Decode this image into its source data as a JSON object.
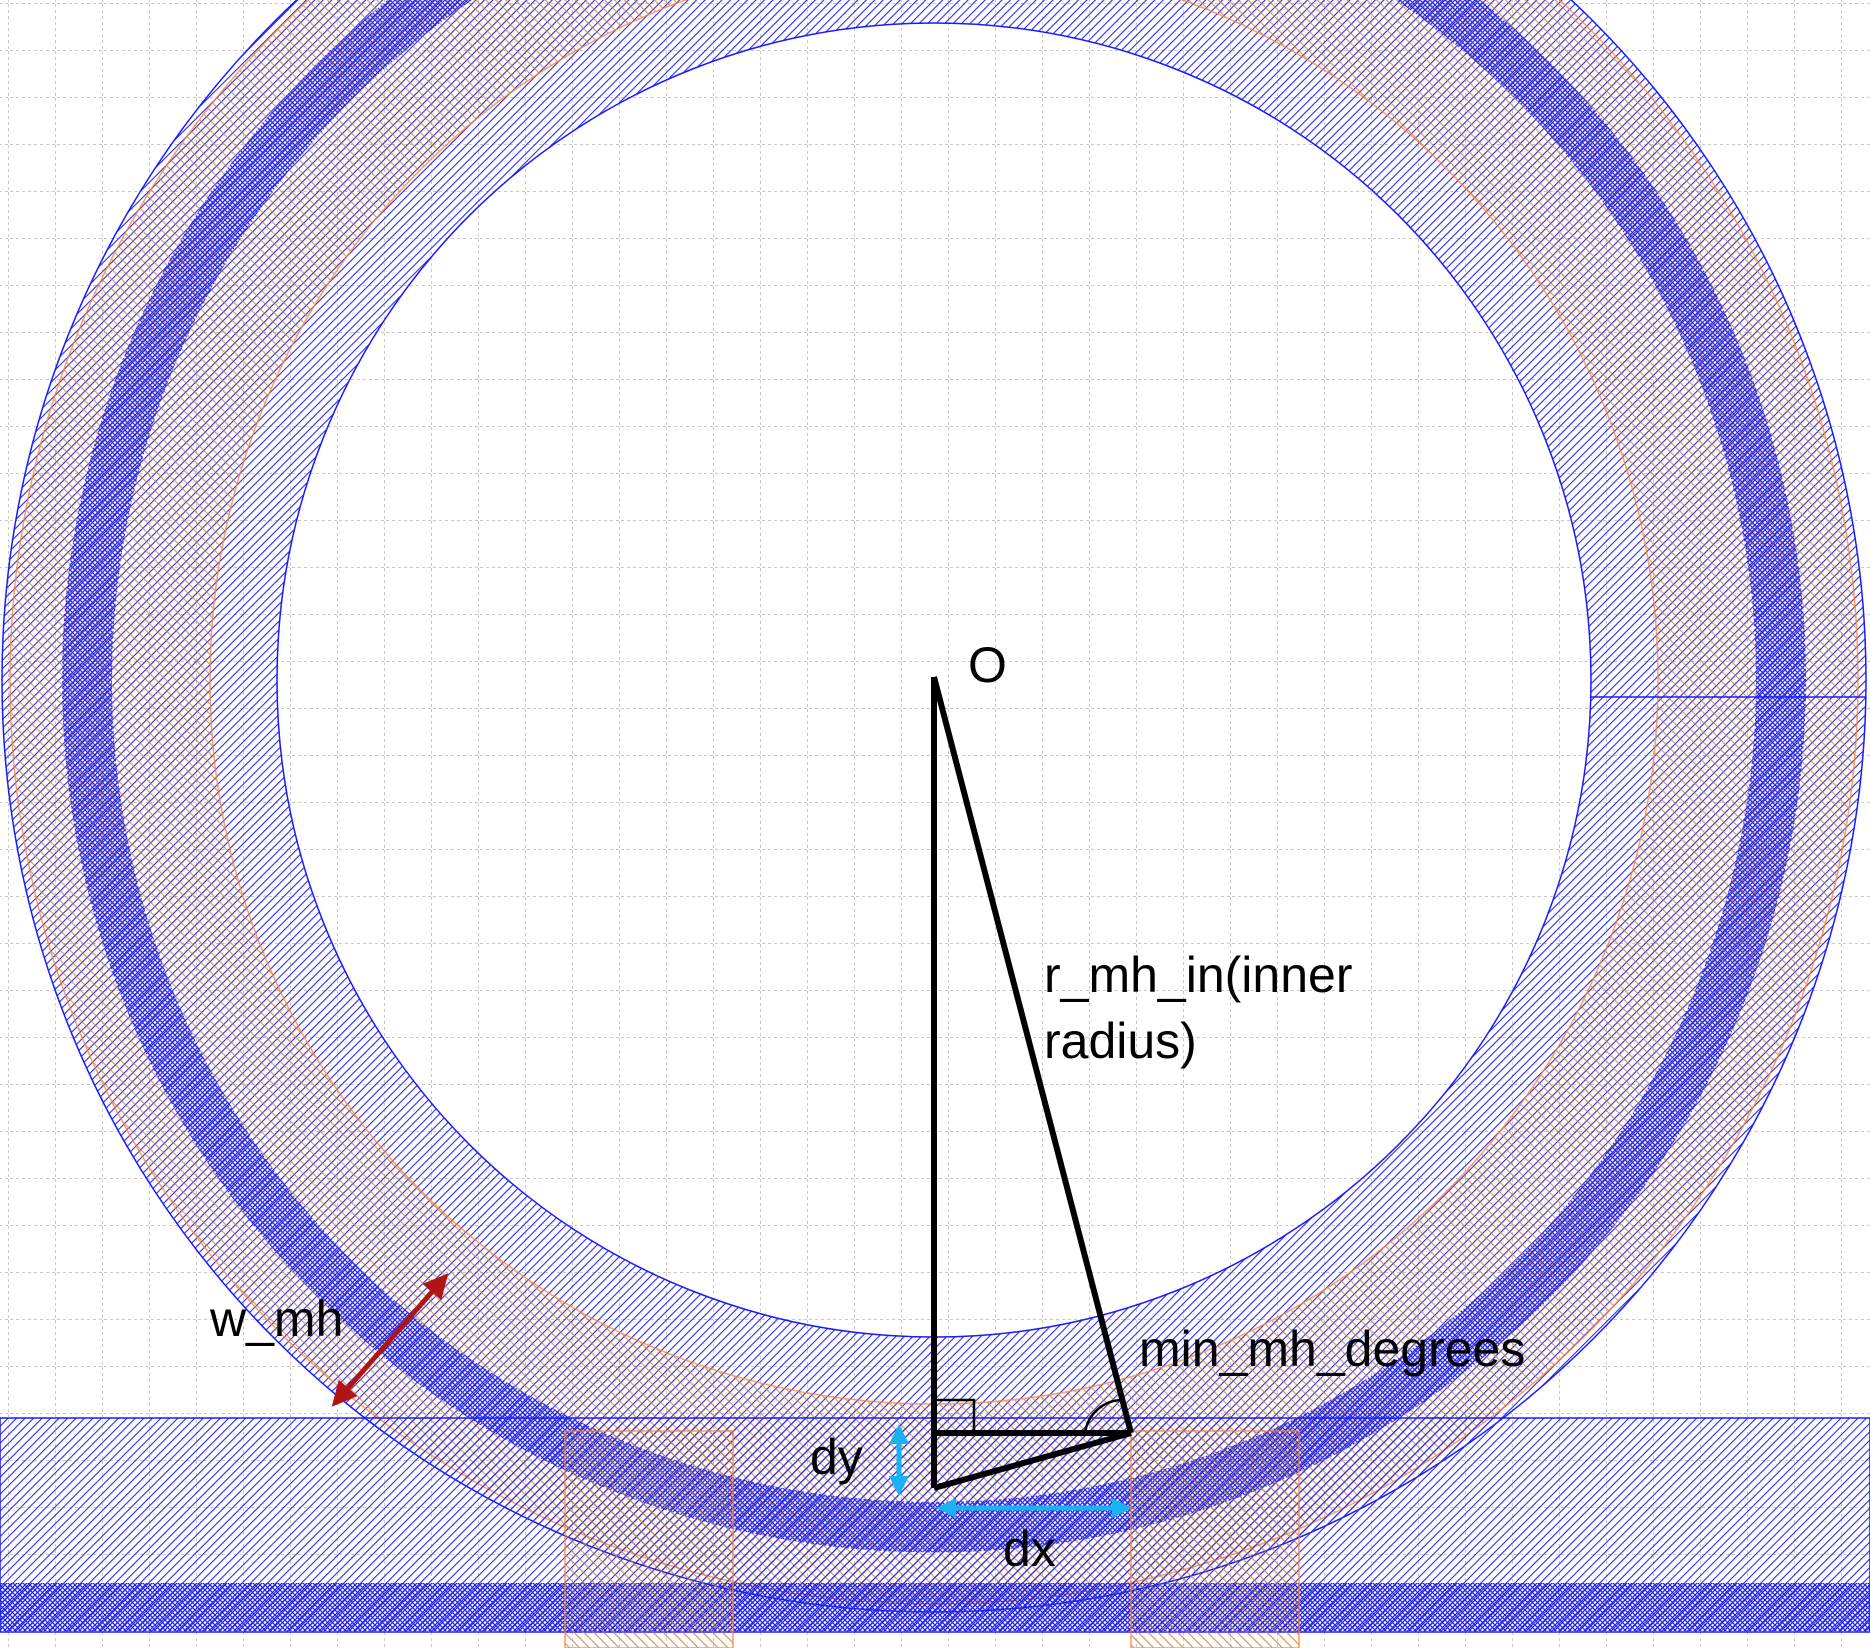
{
  "labels": {
    "origin": "O",
    "radius_line1": "r_mh_in(inner",
    "radius_line2": "radius)",
    "width": "w_mh",
    "angle": "min_mh_degrees",
    "dy": "dy",
    "dx": "dx"
  },
  "colors": {
    "background": "#ffffff",
    "grid": "#b0b0b0",
    "blue_hatch": "#2b2bf0",
    "blue_outline": "#1a1aff",
    "orange_hatch": "#c87a3c",
    "orange_outline": "#ff7f27",
    "red_arrow": "#b01515",
    "cyan_arrow": "#1ab2f0",
    "black": "#000000"
  }
}
